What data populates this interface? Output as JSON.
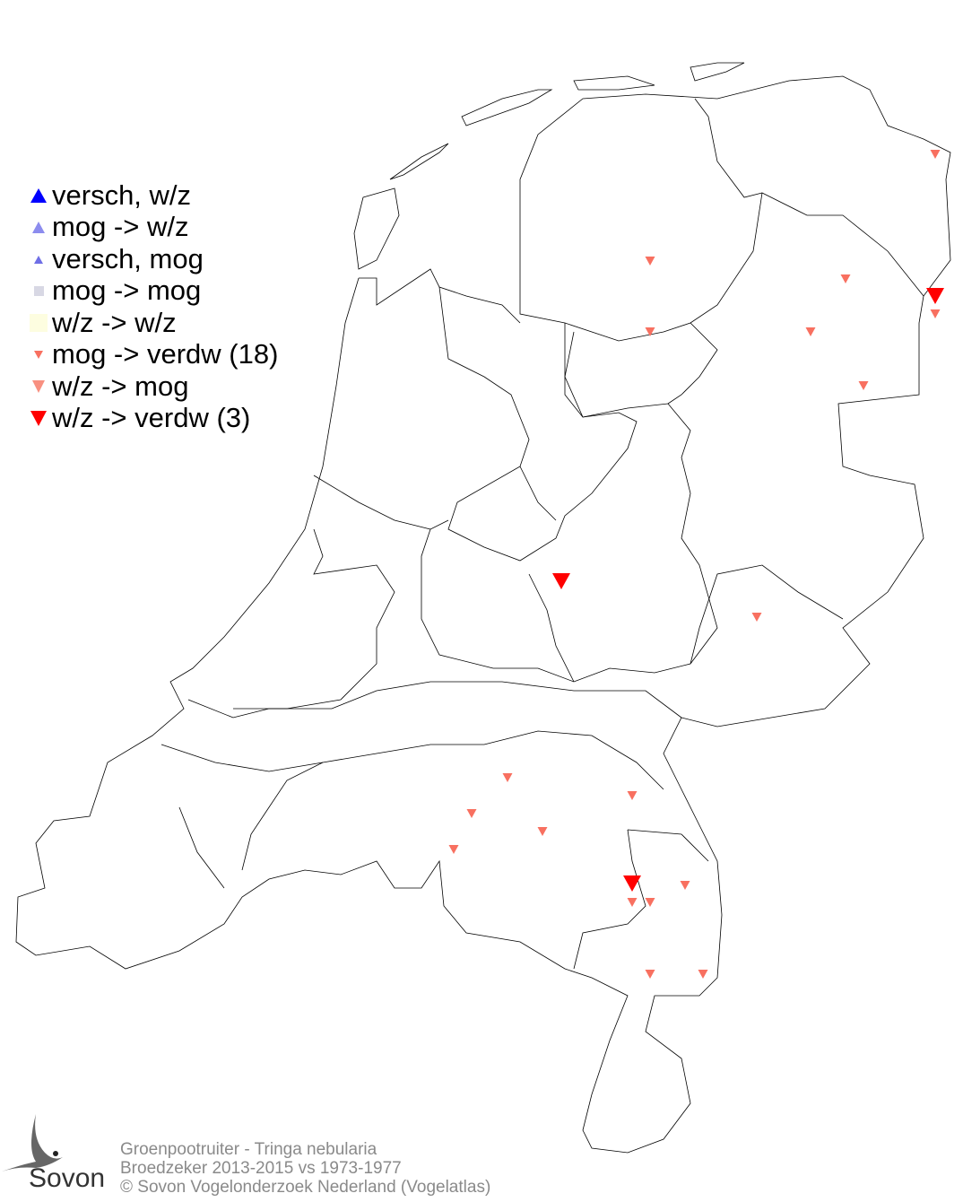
{
  "legend": {
    "items": [
      {
        "label": "versch, w/z",
        "symbol": "triangle-up",
        "color": "#0000ff",
        "size": "large"
      },
      {
        "label": "mog -> w/z",
        "symbol": "triangle-up",
        "color": "#8c8cee",
        "size": "medium"
      },
      {
        "label": "versch, mog",
        "symbol": "triangle-up",
        "color": "#6f6fe6",
        "size": "small"
      },
      {
        "label": "mog -> mog",
        "symbol": "square",
        "color": "#d8d8e4",
        "size": "small"
      },
      {
        "label": "w/z -> w/z",
        "symbol": "square",
        "color": "#fdfde0",
        "size": "large"
      },
      {
        "label": "mog -> verdw (18)",
        "symbol": "triangle-down",
        "color": "#f87060",
        "size": "small"
      },
      {
        "label": "w/z -> mog",
        "symbol": "triangle-down",
        "color": "#f89080",
        "size": "medium"
      },
      {
        "label": "w/z -> verdw (3)",
        "symbol": "triangle-down",
        "color": "#ff0000",
        "size": "large"
      }
    ]
  },
  "markers": {
    "mog_verdw_count": 18,
    "wz_verdw_count": 3
  },
  "footer": {
    "line1": "Groenpootruiter - Tringa nebularia",
    "line2": "Broedzeker 2013-2015 vs 1973-1977",
    "line3": "© Sovon Vogelonderzoek Nederland (Vogelatlas)"
  },
  "logo": {
    "text": "Sovon"
  }
}
